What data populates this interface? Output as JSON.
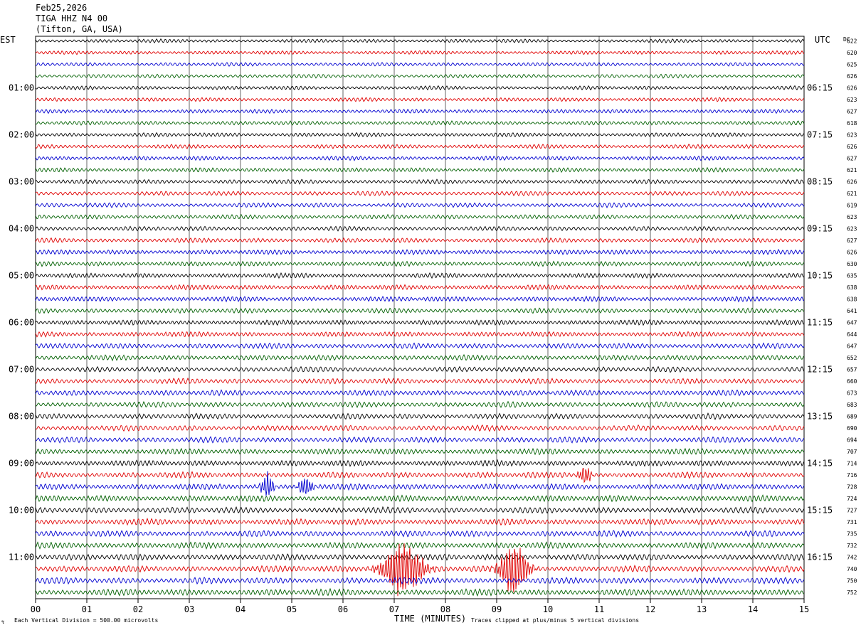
{
  "header": {
    "date": "Feb25,2026",
    "station": "TIGA HHZ N4 00",
    "location": "(Tifton, GA, USA)"
  },
  "left_tz": "EST",
  "right_tz": "UTC",
  "dc_label": "DC",
  "footer": {
    "scale_note": "Each Vertical Division =  500.00 microvolts",
    "xlabel": "TIME (MINUTES)",
    "clip_note": "Traces clipped at plus/minus 5 vertical divisions"
  },
  "chart_data": {
    "type": "line",
    "title": "",
    "xlabel": "TIME (MINUTES)",
    "xlim": [
      0,
      15
    ],
    "x_ticks": [
      "00",
      "01",
      "02",
      "03",
      "04",
      "05",
      "06",
      "07",
      "08",
      "09",
      "10",
      "11",
      "12",
      "13",
      "14",
      "15"
    ],
    "trace_count": 48,
    "trace_minutes": 15,
    "trace_colors": [
      "#000000",
      "#e00000",
      "#0000d0",
      "#006000"
    ],
    "left_hour_labels": [
      "01:00",
      "02:00",
      "03:00",
      "04:00",
      "05:00",
      "06:00",
      "07:00",
      "08:00",
      "09:00",
      "10:00",
      "11:00"
    ],
    "right_hour_labels": [
      "06:15",
      "07:15",
      "08:15",
      "09:15",
      "10:15",
      "11:15",
      "12:15",
      "13:15",
      "14:15",
      "15:15",
      "16:15"
    ],
    "dc_values": [
      "622",
      "620",
      "625",
      "626",
      "626",
      "623",
      "627",
      "618",
      "623",
      "626",
      "627",
      "621",
      "626",
      "621",
      "619",
      "623",
      "623",
      "627",
      "626",
      "630",
      "635",
      "638",
      "638",
      "641",
      "647",
      "644",
      "647",
      "652",
      "657",
      "660",
      "673",
      "683",
      "689",
      "690",
      "694",
      "707",
      "714",
      "716",
      "728",
      "724",
      "727",
      "731",
      "735",
      "732",
      "742",
      "740",
      "750",
      "752"
    ],
    "events": [
      {
        "trace": 37,
        "start_min": 10.5,
        "end_min": 11.0,
        "peak_divisions": 1.8
      },
      {
        "trace": 38,
        "start_min": 4.3,
        "end_min": 4.8,
        "peak_divisions": 2.5
      },
      {
        "trace": 38,
        "start_min": 5.0,
        "end_min": 5.6,
        "peak_divisions": 1.8
      },
      {
        "trace": 45,
        "start_min": 6.4,
        "end_min": 8.1,
        "peak_divisions": 5
      },
      {
        "trace": 45,
        "start_min": 8.8,
        "end_min": 10.0,
        "peak_divisions": 5
      }
    ]
  }
}
